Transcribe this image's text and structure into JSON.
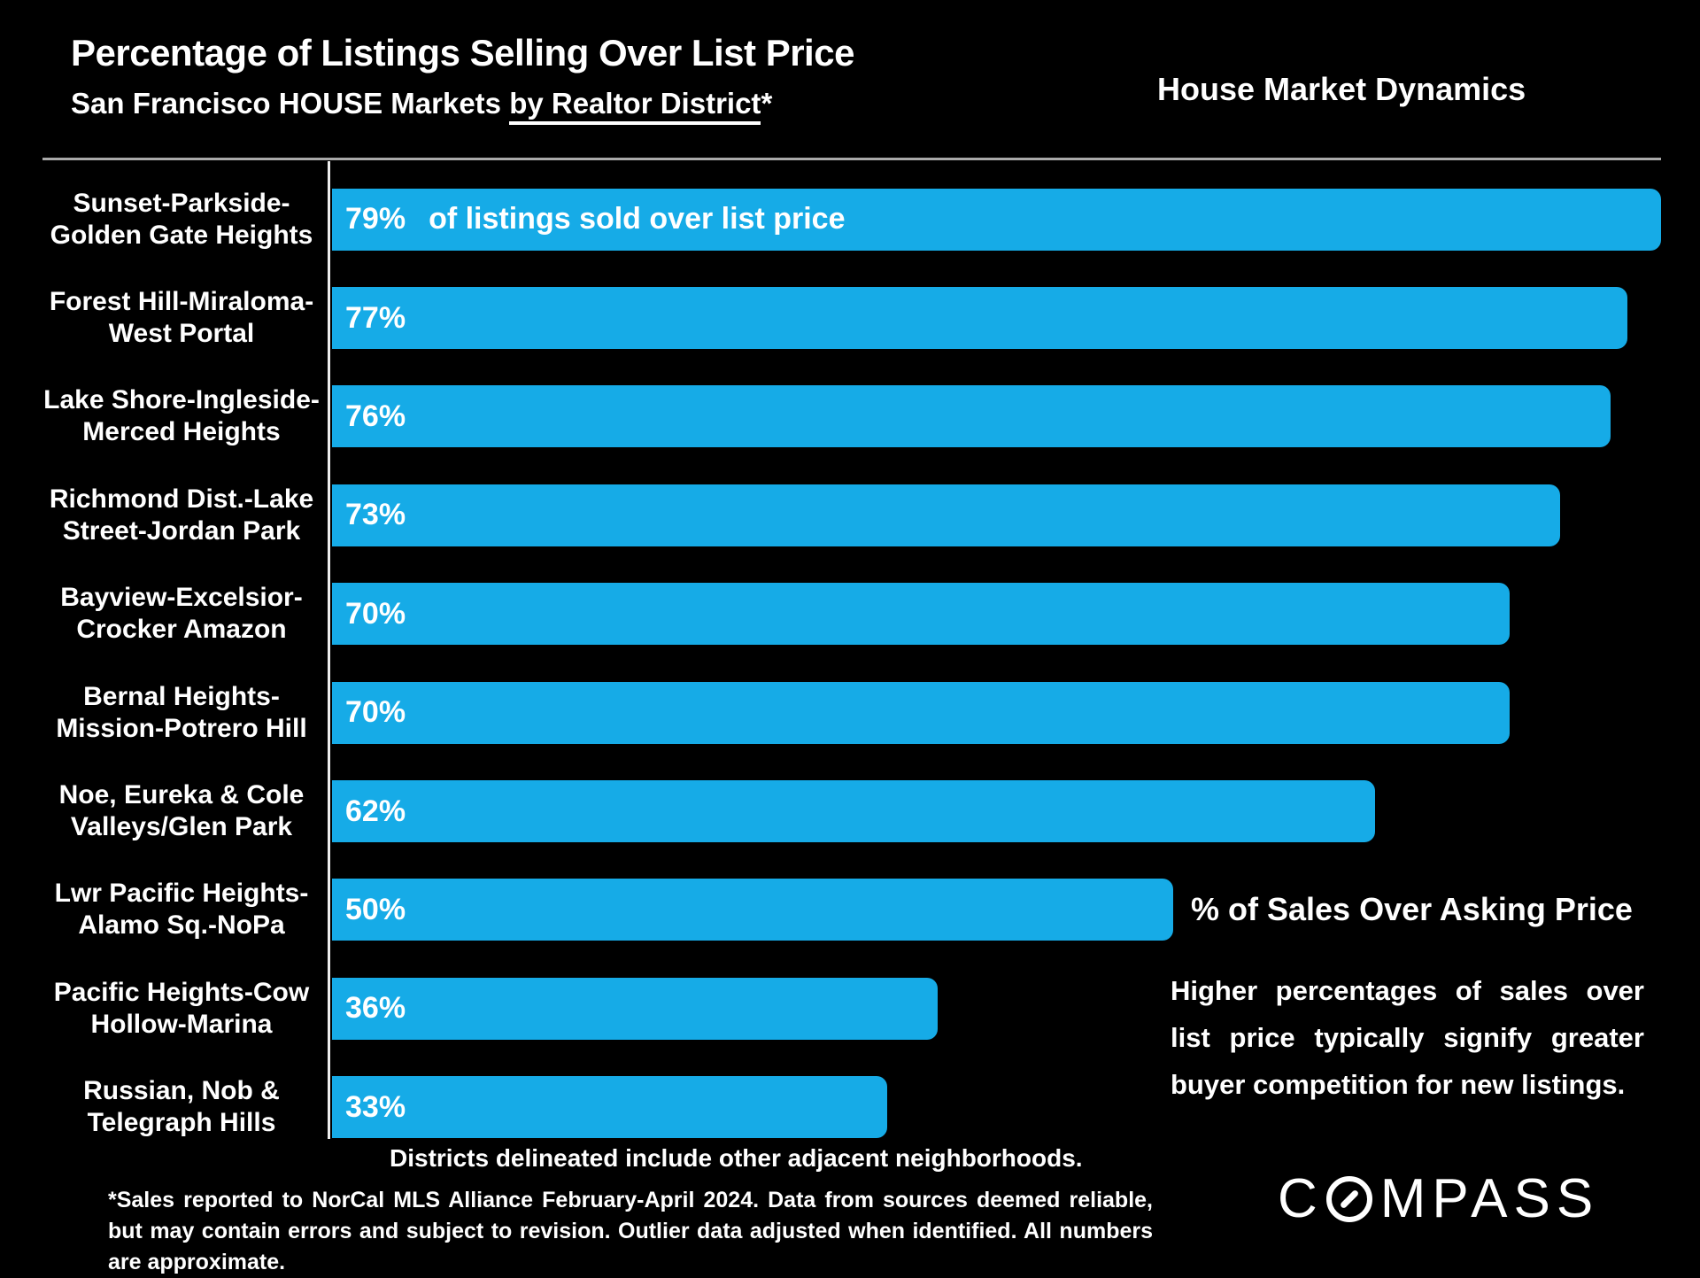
{
  "header": {
    "title": "Percentage of Listings Selling Over List Price",
    "subtitle_prefix": "San Francisco HOUSE Markets ",
    "subtitle_underlined": "by Realtor District",
    "subtitle_suffix": "*",
    "right_title": "House Market Dynamics"
  },
  "chart_data": {
    "type": "bar",
    "orientation": "horizontal",
    "unit": "%",
    "categories": [
      [
        "Sunset-Parkside-",
        "Golden Gate Heights"
      ],
      [
        "Forest Hill-Miraloma-",
        "West Portal"
      ],
      [
        "Lake Shore-Ingleside-",
        "Merced Heights"
      ],
      [
        "Richmond Dist.-Lake",
        "Street-Jordan Park"
      ],
      [
        "Bayview-Excelsior-",
        "Crocker Amazon"
      ],
      [
        "Bernal Heights-",
        "Mission-Potrero Hill"
      ],
      [
        "Noe, Eureka & Cole",
        "Valleys/Glen Park"
      ],
      [
        "Lwr Pacific Heights-",
        "Alamo Sq.-NoPa"
      ],
      [
        "Pacific Heights-Cow",
        "Hollow-Marina"
      ],
      [
        "Russian, Nob &",
        "Telegraph Hills"
      ]
    ],
    "values": [
      79,
      77,
      76,
      73,
      70,
      70,
      62,
      50,
      36,
      33
    ],
    "first_bar_note": "of listings sold over list price",
    "bar_color": "#16abe7",
    "value_label_color": "#ffffff",
    "xlim": [
      0,
      80
    ],
    "grid": false,
    "legend": false
  },
  "annotations": {
    "axis_note": "% of Sales Over Asking Price",
    "explainer": "Higher percentages of sales over list price typically signify greater buyer competition for new listings.",
    "districts_note": "Districts delineated include other adjacent neighborhoods.",
    "footnote": "*Sales reported to NorCal MLS Alliance February-April 2024. Data from sources deemed reliable, but may contain errors and subject to revision. Outlier data adjusted when identified. All numbers are approximate."
  },
  "logo": {
    "brand": "COMPASS",
    "part1": "C",
    "part2": "MPASS"
  }
}
